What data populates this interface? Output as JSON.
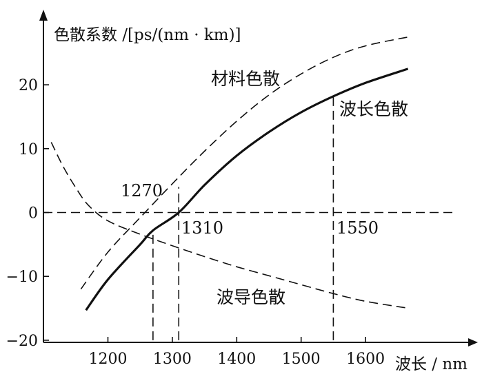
{
  "chart_data": {
    "type": "line",
    "ylabel": "色散系数 /[ps/(nm · km)]",
    "xlabel": "波长 / nm",
    "xlim": [
      1100,
      1700
    ],
    "ylim": [
      -20,
      30
    ],
    "x_ticks": [
      1200,
      1300,
      1400,
      1500,
      1600
    ],
    "y_ticks": [
      -20,
      -10,
      0,
      10,
      20
    ],
    "x_tick_labels": [
      "1200",
      "1300",
      "1400",
      "1500",
      "1600"
    ],
    "y_tick_labels": [
      "−20",
      "−10",
      "0",
      "10",
      "20"
    ],
    "grid": false,
    "series": [
      {
        "name": "材料色散",
        "style": "dashed",
        "x": [
          1158,
          1200,
          1250,
          1300,
          1350,
          1400,
          1450,
          1500,
          1550,
          1600,
          1667
        ],
        "y": [
          -12,
          -6.2,
          -0.8,
          4.5,
          9.6,
          14.3,
          18.4,
          21.7,
          24.3,
          26.1,
          27.5
        ]
      },
      {
        "name": "波导色散",
        "style": "dashed",
        "x": [
          1112,
          1130,
          1150,
          1170,
          1200,
          1250,
          1300,
          1350,
          1400,
          1450,
          1500,
          1550,
          1600,
          1667
        ],
        "y": [
          11,
          7.3,
          3.9,
          1.1,
          -1.3,
          -3.4,
          -5.2,
          -6.9,
          -8.5,
          -9.9,
          -11.3,
          -12.7,
          -13.9,
          -15
        ]
      },
      {
        "name": "波长色散",
        "style": "solid",
        "x": [
          1166,
          1200,
          1250,
          1270,
          1310,
          1350,
          1400,
          1450,
          1500,
          1550,
          1600,
          1666
        ],
        "y": [
          -15.3,
          -10.5,
          -5,
          -2.8,
          0,
          4.3,
          8.9,
          12.6,
          15.7,
          18.2,
          20.3,
          22.5
        ]
      }
    ],
    "reference_lines": [
      {
        "axis": "y",
        "value": 0
      },
      {
        "axis": "x",
        "value": 1270,
        "from_y": -20,
        "to_y": -2.8
      },
      {
        "axis": "x",
        "value": 1310,
        "from_y": -20,
        "to_y": 4
      },
      {
        "axis": "x",
        "value": 1550,
        "from_y": -20,
        "to_y": 18.2
      }
    ],
    "annotations": [
      {
        "text": "1270",
        "x": 1270,
        "y": 1
      },
      {
        "text": "1310",
        "x": 1310,
        "y": 0
      },
      {
        "text": "1550",
        "x": 1550,
        "y": 0
      }
    ]
  }
}
